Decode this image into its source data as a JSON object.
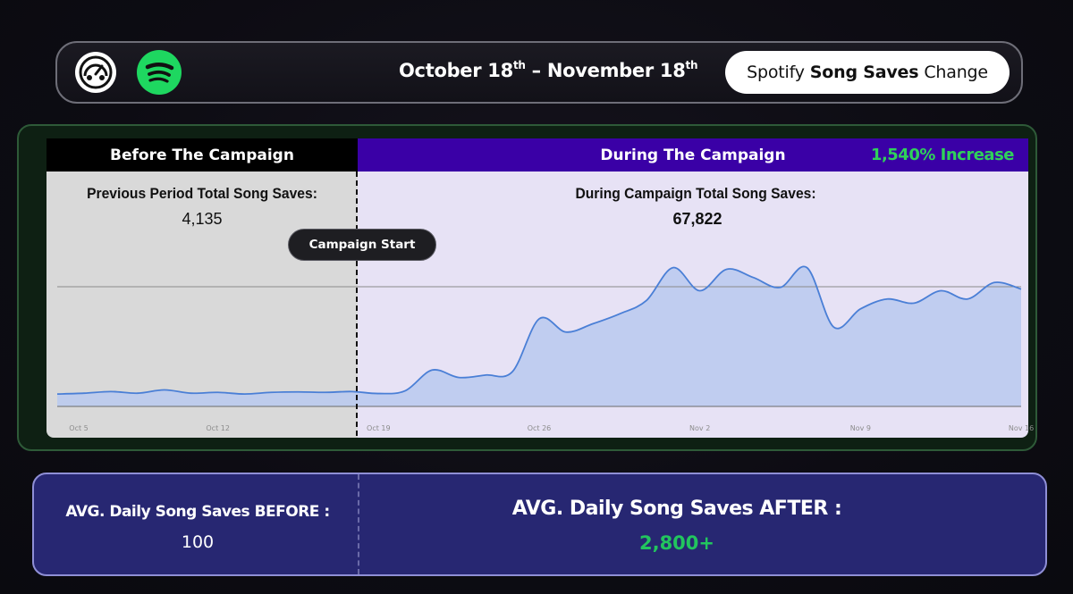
{
  "header": {
    "date_start": "October 18",
    "date_start_suffix": "th",
    "date_sep": " – ",
    "date_end": "November 18",
    "date_end_suffix": "th",
    "metric_prefix": "Spotify",
    "metric_bold": "Song Saves",
    "metric_suffix": "Change",
    "logo_icon": "meter-face-logo-icon",
    "platform_icon": "spotify-logo-icon"
  },
  "bands": {
    "before_label": "Before The Campaign",
    "during_label": "During The Campaign",
    "increase_label": "1,540% Increase"
  },
  "stats": {
    "before_title": "Previous Period Total Song Saves:",
    "before_value": "4,135",
    "during_title": "During Campaign Total Song Saves:",
    "during_value": "67,822"
  },
  "annotation": {
    "campaign_start": "Campaign Start"
  },
  "averages": {
    "before_label": "AVG. Daily Song Saves BEFORE :",
    "before_value": "100",
    "after_label": "AVG. Daily Song Saves AFTER :",
    "after_value": "2,800+"
  },
  "colors": {
    "before_panel": "#d9d9d9",
    "during_panel": "#e7e2f5",
    "during_band": "#3a00a6",
    "line": "#4a7fd6",
    "area_fill": "#b9c9ef",
    "increase_green": "#2fd15a",
    "after_value_green": "#22c55e",
    "spotify_green": "#1ed760"
  },
  "chart_data": {
    "type": "area",
    "x_tick_labels": [
      "Oct 5",
      "Oct 12",
      "Oct 19",
      "Oct 26",
      "Nov 2",
      "Nov 9",
      "Nov 16"
    ],
    "campaign_start_index": 14,
    "grid": "horizontal",
    "series": [
      {
        "values": [
          75,
          80,
          90,
          80,
          100,
          80,
          85,
          75,
          85,
          88,
          85,
          90,
          78,
          95,
          220,
          175,
          190,
          210,
          530,
          450,
          500,
          560,
          640,
          840,
          700,
          830,
          780,
          720,
          840,
          480,
          590,
          650,
          625,
          700,
          650,
          750,
          710
        ]
      }
    ]
  }
}
